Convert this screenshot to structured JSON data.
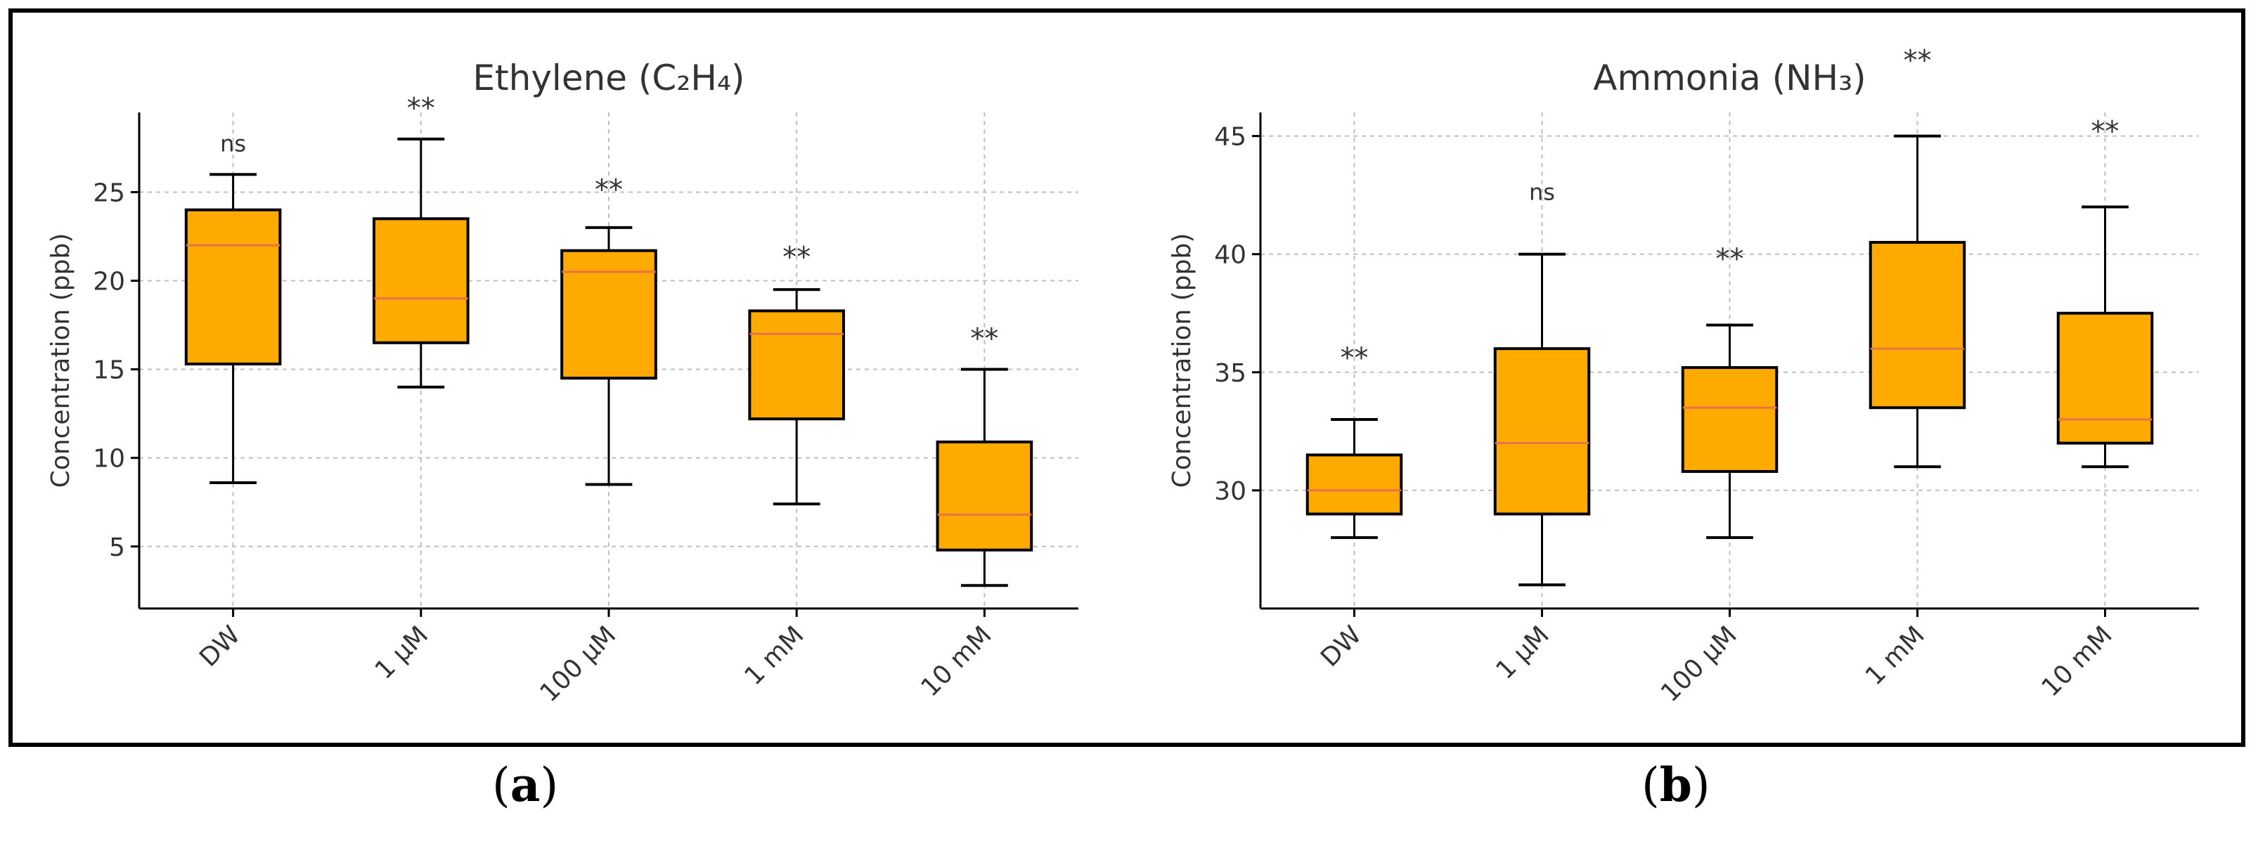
{
  "colors": {
    "box_fill": "#FFAA00",
    "median": "#E8734A",
    "edge": "#000000",
    "grid": "#BFBFBF",
    "text": "#333333"
  },
  "panel_labels": [
    {
      "open": "(",
      "letter": "a",
      "close": ")"
    },
    {
      "open": "(",
      "letter": "b",
      "close": ")"
    }
  ],
  "chart_data": [
    {
      "type": "box",
      "title": "Ethylene (C₂H₄)",
      "xlabel": "",
      "ylabel": "Concentration (ppb)",
      "categories": [
        "DW",
        "1 µM",
        "100 µM",
        "1 mM",
        "10 mM"
      ],
      "ylim": [
        1.5,
        29.5
      ],
      "yticks": [
        5,
        10,
        15,
        20,
        25
      ],
      "grid": true,
      "boxes": [
        {
          "whislo": 8.6,
          "q1": 15.3,
          "med": 22.0,
          "q3": 24.0,
          "whishi": 26.0
        },
        {
          "whislo": 14.0,
          "q1": 16.5,
          "med": 19.0,
          "q3": 23.5,
          "whishi": 28.0
        },
        {
          "whislo": 8.5,
          "q1": 14.5,
          "med": 20.5,
          "q3": 21.7,
          "whishi": 23.0
        },
        {
          "whislo": 7.4,
          "q1": 12.2,
          "med": 17.0,
          "q3": 18.3,
          "whishi": 19.5
        },
        {
          "whislo": 2.8,
          "q1": 4.8,
          "med": 6.8,
          "q3": 10.9,
          "whishi": 15.0
        }
      ],
      "annotations": [
        {
          "text": "ns",
          "y": 27.3
        },
        {
          "text": "**",
          "y": 29.2
        },
        {
          "text": "**",
          "y": 24.6
        },
        {
          "text": "**",
          "y": 20.8
        },
        {
          "text": "**",
          "y": 16.2
        }
      ]
    },
    {
      "type": "box",
      "title": "Ammonia (NH₃)",
      "xlabel": "",
      "ylabel": "Concentration (ppb)",
      "categories": [
        "DW",
        "1 µM",
        "100 µM",
        "1 mM",
        "10 mM"
      ],
      "ylim": [
        25,
        46
      ],
      "yticks": [
        30,
        35,
        40,
        45
      ],
      "grid": true,
      "boxes": [
        {
          "whislo": 28.0,
          "q1": 29.0,
          "med": 30.0,
          "q3": 31.5,
          "whishi": 33.0
        },
        {
          "whislo": 26.0,
          "q1": 29.0,
          "med": 32.0,
          "q3": 36.0,
          "whishi": 40.0
        },
        {
          "whislo": 28.0,
          "q1": 30.8,
          "med": 33.5,
          "q3": 35.2,
          "whishi": 37.0
        },
        {
          "whislo": 31.0,
          "q1": 33.5,
          "med": 36.0,
          "q3": 40.5,
          "whishi": 45.0
        },
        {
          "whislo": 31.0,
          "q1": 32.0,
          "med": 33.0,
          "q3": 37.5,
          "whishi": 42.0
        }
      ],
      "annotations": [
        {
          "text": "**",
          "y": 35.2
        },
        {
          "text": "ns",
          "y": 42.3
        },
        {
          "text": "**",
          "y": 39.4
        },
        {
          "text": "**",
          "y": 47.8
        },
        {
          "text": "**",
          "y": 44.8
        }
      ]
    }
  ]
}
